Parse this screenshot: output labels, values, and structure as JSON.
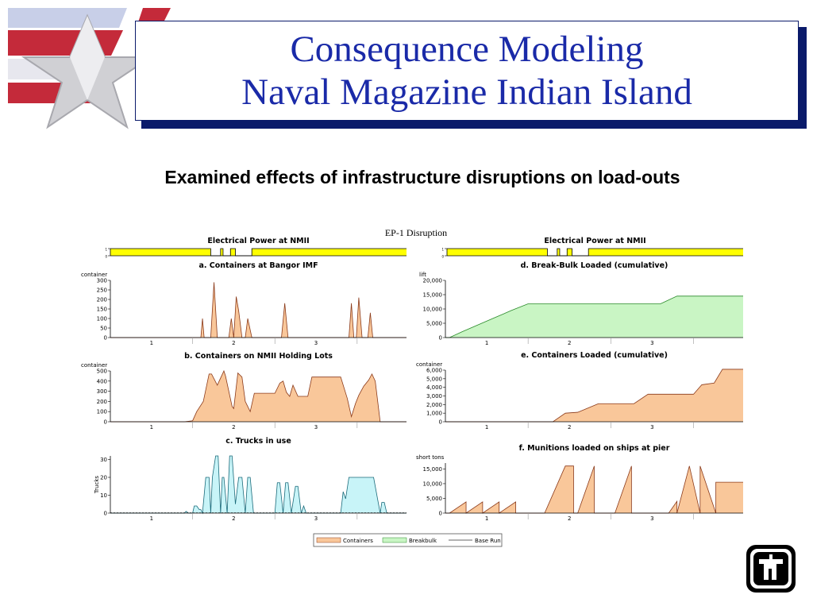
{
  "slide": {
    "title_line1": "Consequence Modeling",
    "title_line2": "Naval Magazine Indian Island",
    "subtitle": "Examined effects of infrastructure disruptions on load-outs",
    "figure_title": "EP-1 Disruption"
  },
  "colors": {
    "title_blue": "#1a2aa8",
    "shadow_navy": "#0a1a6a",
    "containers": "#f9c79a",
    "containers_line": "#8b3a1a",
    "breakbulk": "#c9f5c4",
    "breakbulk_line": "#2a8a2a",
    "trucks": "#c8f4f8",
    "trucks_line": "#1a6a7a",
    "power": "#ffff00"
  },
  "icons": [
    "flag-star-logo-icon",
    "sandia-thunderbird-logo-icon"
  ],
  "chart_data": [
    {
      "id": "powerL",
      "type": "area",
      "title": "Electrical Power at NMII",
      "ylabel": "",
      "ylim": [
        0,
        1
      ],
      "yticks": [
        "0",
        "1"
      ],
      "xlim": [
        0,
        3.6
      ],
      "x": [
        0,
        1.22,
        1.22,
        1.34,
        1.34,
        1.37,
        1.37,
        1.46,
        1.46,
        1.52,
        1.52,
        1.72,
        1.72,
        3.6
      ],
      "values": [
        1,
        1,
        0,
        0,
        1,
        1,
        0,
        0,
        1,
        1,
        0,
        0,
        1,
        1
      ]
    },
    {
      "id": "powerR",
      "type": "area",
      "title": "Electrical Power at NMII",
      "ylabel": "",
      "ylim": [
        0,
        1
      ],
      "yticks": [
        "0",
        "1"
      ],
      "xlim": [
        0,
        3.6
      ],
      "x": [
        0,
        1.22,
        1.22,
        1.34,
        1.34,
        1.37,
        1.37,
        1.46,
        1.46,
        1.52,
        1.52,
        1.72,
        1.72,
        3.6
      ],
      "values": [
        1,
        1,
        0,
        0,
        1,
        1,
        0,
        0,
        1,
        1,
        0,
        0,
        1,
        1
      ]
    },
    {
      "id": "a",
      "type": "area",
      "title": "a. Containers at Bangor IMF",
      "ylabel": "container",
      "ylim": [
        0,
        300
      ],
      "yticks": [
        "0",
        "50",
        "100",
        "150",
        "200",
        "250",
        "300"
      ],
      "xticks": [
        "1",
        "2",
        "3"
      ],
      "xlim": [
        0,
        3.6
      ],
      "x": [
        0,
        1.1,
        1.12,
        1.14,
        1.16,
        1.22,
        1.26,
        1.3,
        1.34,
        1.44,
        1.47,
        1.5,
        1.53,
        1.56,
        1.6,
        1.64,
        1.67,
        1.72,
        1.75,
        2.08,
        2.12,
        2.16,
        2.2,
        2.9,
        2.93,
        2.96,
        2.99,
        3.02,
        3.06,
        3.1,
        3.13,
        3.16,
        3.19,
        3.22,
        3.6
      ],
      "values": [
        0,
        0,
        100,
        0,
        0,
        0,
        290,
        0,
        0,
        0,
        100,
        0,
        215,
        140,
        0,
        0,
        100,
        0,
        0,
        0,
        180,
        0,
        0,
        0,
        180,
        0,
        0,
        210,
        0,
        0,
        0,
        130,
        0,
        0,
        0
      ]
    },
    {
      "id": "b",
      "type": "area",
      "title": "b. Containers on NMII Holding Lots",
      "ylabel": "container",
      "ylim": [
        0,
        500
      ],
      "yticks": [
        "0",
        "100",
        "200",
        "300",
        "400",
        "500"
      ],
      "xticks": [
        "1",
        "2",
        "3"
      ],
      "xlim": [
        0,
        3.6
      ],
      "x": [
        0,
        0.9,
        1.0,
        1.05,
        1.13,
        1.2,
        1.23,
        1.3,
        1.34,
        1.38,
        1.4,
        1.44,
        1.48,
        1.5,
        1.55,
        1.6,
        1.64,
        1.7,
        1.75,
        1.8,
        1.88,
        2.0,
        2.06,
        2.1,
        2.14,
        2.18,
        2.22,
        2.28,
        2.35,
        2.4,
        2.45,
        2.5,
        2.6,
        2.8,
        2.88,
        2.93,
        2.98,
        3.02,
        3.08,
        3.14,
        3.18,
        3.22,
        3.28,
        3.35,
        3.6
      ],
      "values": [
        0,
        0,
        10,
        100,
        200,
        470,
        470,
        360,
        430,
        500,
        450,
        300,
        150,
        130,
        480,
        440,
        200,
        100,
        280,
        280,
        280,
        280,
        380,
        400,
        290,
        250,
        360,
        250,
        250,
        250,
        440,
        440,
        440,
        440,
        230,
        50,
        180,
        260,
        350,
        410,
        470,
        400,
        0,
        0,
        0
      ]
    },
    {
      "id": "c",
      "type": "area",
      "title": "c. Trucks in use",
      "ylabel": "Trucks",
      "ylim": [
        0,
        32
      ],
      "yticks": [
        "0",
        "10",
        "20",
        "30"
      ],
      "xticks": [
        "1",
        "2",
        "3"
      ],
      "xlim": [
        0,
        3.6
      ],
      "x": [
        0,
        0.9,
        0.92,
        0.95,
        1.0,
        1.02,
        1.05,
        1.08,
        1.1,
        1.12,
        1.16,
        1.2,
        1.22,
        1.24,
        1.28,
        1.31,
        1.34,
        1.36,
        1.38,
        1.42,
        1.45,
        1.48,
        1.52,
        1.56,
        1.6,
        1.64,
        1.67,
        1.7,
        1.74,
        2.0,
        2.03,
        2.06,
        2.1,
        2.13,
        2.16,
        2.2,
        2.25,
        2.28,
        2.32,
        2.35,
        2.38,
        2.8,
        2.83,
        2.86,
        2.9,
        3.0,
        3.1,
        3.2,
        3.28,
        3.3,
        3.33,
        3.36,
        3.6
      ],
      "values": [
        0,
        0,
        1,
        0,
        0,
        4,
        4,
        2,
        2,
        0,
        20,
        20,
        0,
        20,
        32,
        32,
        0,
        20,
        20,
        0,
        32,
        32,
        5,
        20,
        20,
        0,
        20,
        20,
        0,
        0,
        17,
        17,
        0,
        17,
        17,
        0,
        15,
        15,
        0,
        4,
        0,
        0,
        12,
        8,
        20,
        20,
        20,
        20,
        0,
        6,
        6,
        0,
        0
      ]
    },
    {
      "id": "d",
      "type": "area",
      "title": "d. Break-Bulk Loaded (cumulative)",
      "ylabel": "lift",
      "ylim": [
        0,
        20000
      ],
      "yticks": [
        "0",
        "5,000",
        "10,000",
        "15,000",
        "20,000"
      ],
      "xticks": [
        "1",
        "2",
        "3"
      ],
      "xlim": [
        0,
        3.6
      ],
      "x": [
        0,
        0.05,
        0.2,
        0.4,
        0.6,
        0.8,
        1.0,
        1.2,
        1.5,
        1.8,
        2.0,
        2.2,
        2.4,
        2.6,
        2.8,
        3.0,
        3.2,
        3.4,
        3.6
      ],
      "values": [
        0,
        0,
        2000,
        4500,
        7000,
        9500,
        11800,
        11800,
        11800,
        11800,
        11800,
        11800,
        11800,
        11800,
        14500,
        14500,
        14500,
        14500,
        14500
      ]
    },
    {
      "id": "e",
      "type": "area",
      "title": "e. Containers Loaded (cumulative)",
      "ylabel": "container",
      "ylim": [
        0,
        6000
      ],
      "yticks": [
        "0",
        "1,000",
        "2,000",
        "3,000",
        "4,000",
        "5,000",
        "6,000"
      ],
      "xticks": [
        "1",
        "2",
        "3"
      ],
      "xlim": [
        0,
        3.6
      ],
      "x": [
        0,
        1.1,
        1.3,
        1.45,
        1.6,
        1.85,
        2.1,
        2.28,
        2.45,
        2.6,
        2.85,
        3.0,
        3.1,
        3.25,
        3.35,
        3.6
      ],
      "values": [
        0,
        0,
        0,
        1000,
        1100,
        2100,
        2100,
        2100,
        3200,
        3200,
        3200,
        3200,
        4300,
        4500,
        6100,
        6100
      ]
    },
    {
      "id": "f",
      "type": "area",
      "title": "f. Munitions loaded on ships at pier",
      "ylabel": "short tons",
      "ylim": [
        0,
        17000
      ],
      "yticks": [
        "0",
        "5,000",
        "10,000",
        "15,000"
      ],
      "xticks": [
        "1",
        "2",
        "3"
      ],
      "xlim": [
        0,
        3.6
      ],
      "x": [
        0,
        0.05,
        0.25,
        0.25,
        0.45,
        0.45,
        0.65,
        0.65,
        0.85,
        0.85,
        1.2,
        1.45,
        1.55,
        1.55,
        1.6,
        1.8,
        1.8,
        2.05,
        2.25,
        2.25,
        2.65,
        2.7,
        2.8,
        2.8,
        2.95,
        3.08,
        3.08,
        3.27,
        3.27,
        3.32,
        3.6
      ],
      "values": [
        0,
        0,
        3800,
        0,
        3800,
        0,
        3800,
        0,
        3800,
        0,
        0,
        16000,
        16000,
        0,
        0,
        16000,
        0,
        0,
        16000,
        0,
        0,
        0,
        4000,
        0,
        16000,
        0,
        16000,
        0,
        10500,
        10500,
        10500
      ]
    }
  ],
  "legend": {
    "containers": "Containers",
    "breakbulk": "Breakbulk",
    "baserun": "Base Run"
  }
}
